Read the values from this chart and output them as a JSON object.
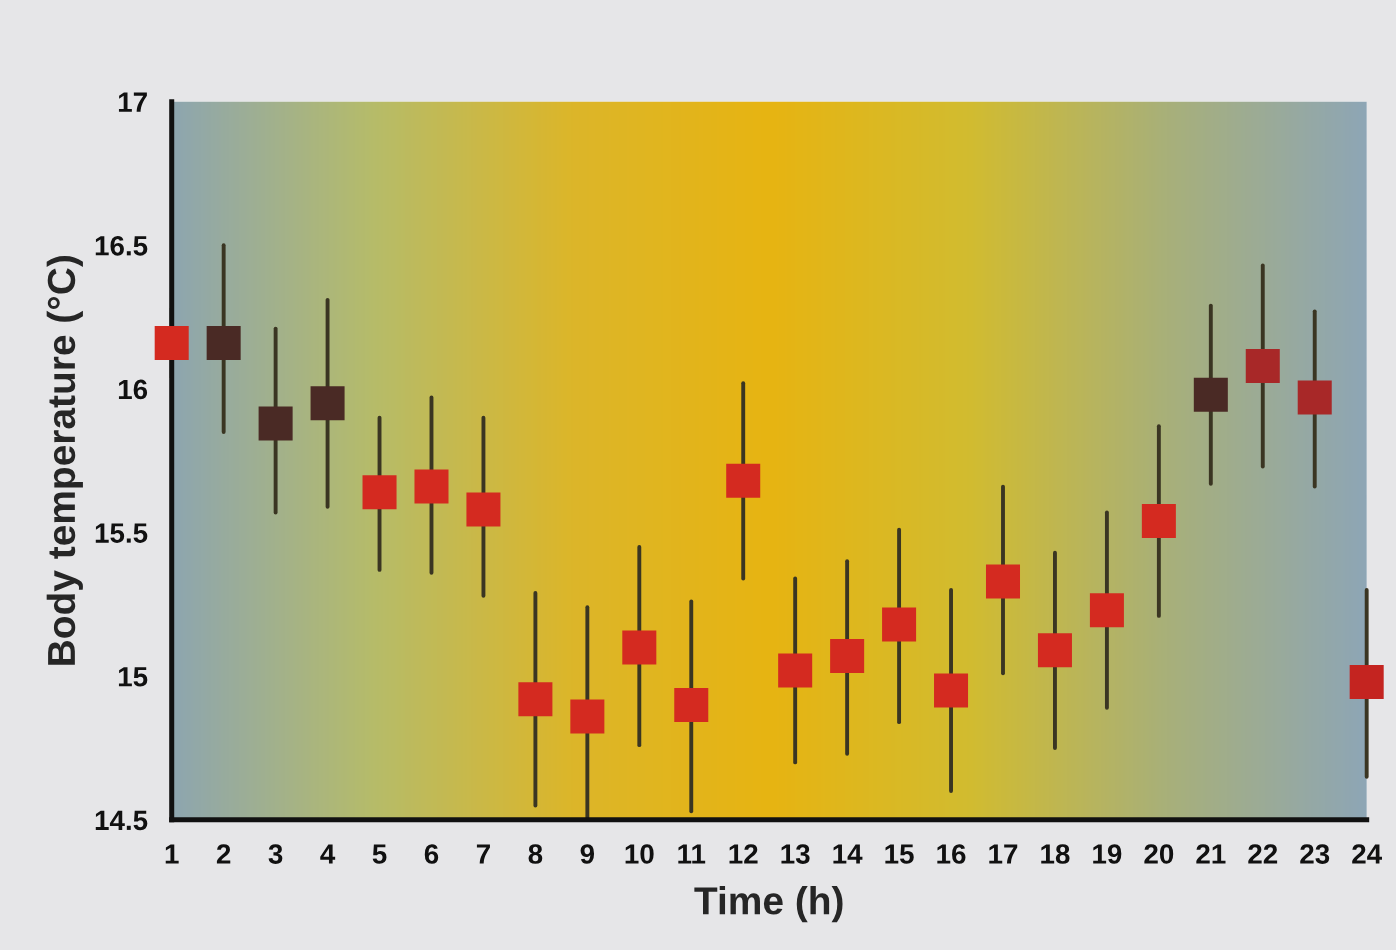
{
  "chart_data": {
    "type": "scatter",
    "xlabel": "Time (h)",
    "ylabel": "Body temperature (°C)",
    "x": [
      1,
      2,
      3,
      4,
      5,
      6,
      7,
      8,
      9,
      10,
      11,
      12,
      13,
      14,
      15,
      16,
      17,
      18,
      19,
      20,
      21,
      22,
      23,
      24
    ],
    "series": [
      {
        "colors": [
          "#d42a20",
          "#4a2a25",
          "#4a2a25",
          "#4a2a25",
          "#d42a20",
          "#d42a20",
          "#d42a20",
          "#d42a20",
          "#d42a20",
          "#d42a20",
          "#d42a20",
          "#d42a20",
          "#d42a20",
          "#d42a20",
          "#d42a20",
          "#d42a20",
          "#d42a20",
          "#d42a20",
          "#d42a20",
          "#d42a20",
          "#4a2a25",
          "#a82828",
          "#a82828",
          "#c42420"
        ],
        "values": [
          16.16,
          16.16,
          15.88,
          15.95,
          15.64,
          15.66,
          15.58,
          14.92,
          14.86,
          15.1,
          14.9,
          15.68,
          15.02,
          15.07,
          15.18,
          14.95,
          15.33,
          15.09,
          15.23,
          15.54,
          15.98,
          16.08,
          15.97,
          14.98
        ],
        "errors": [
          [
            16.04,
            16.28
          ],
          [
            15.85,
            16.5
          ],
          [
            15.57,
            16.21
          ],
          [
            15.59,
            16.31
          ],
          [
            15.37,
            15.9
          ],
          [
            15.36,
            15.97
          ],
          [
            15.28,
            15.9
          ],
          [
            14.55,
            15.29
          ],
          [
            14.5,
            15.24
          ],
          [
            14.76,
            15.45
          ],
          [
            14.53,
            15.26
          ],
          [
            15.34,
            16.02
          ],
          [
            14.7,
            15.34
          ],
          [
            14.73,
            15.4
          ],
          [
            14.84,
            15.51
          ],
          [
            14.6,
            15.3
          ],
          [
            15.01,
            15.66
          ],
          [
            14.75,
            15.43
          ],
          [
            14.89,
            15.57
          ],
          [
            15.21,
            15.87
          ],
          [
            15.67,
            16.29
          ],
          [
            15.73,
            16.43
          ],
          [
            15.66,
            16.27
          ],
          [
            14.65,
            15.3
          ]
        ]
      }
    ],
    "xlim": [
      1,
      24
    ],
    "xticks": [
      1,
      2,
      3,
      4,
      5,
      6,
      7,
      8,
      9,
      10,
      11,
      12,
      13,
      14,
      15,
      16,
      17,
      18,
      19,
      20,
      21,
      22,
      23,
      24
    ],
    "ylim": [
      14.5,
      17
    ],
    "yticks": [
      14.5,
      15,
      15.5,
      16,
      16.5,
      17
    ],
    "marker": "square",
    "grid": false,
    "legend": false
  }
}
